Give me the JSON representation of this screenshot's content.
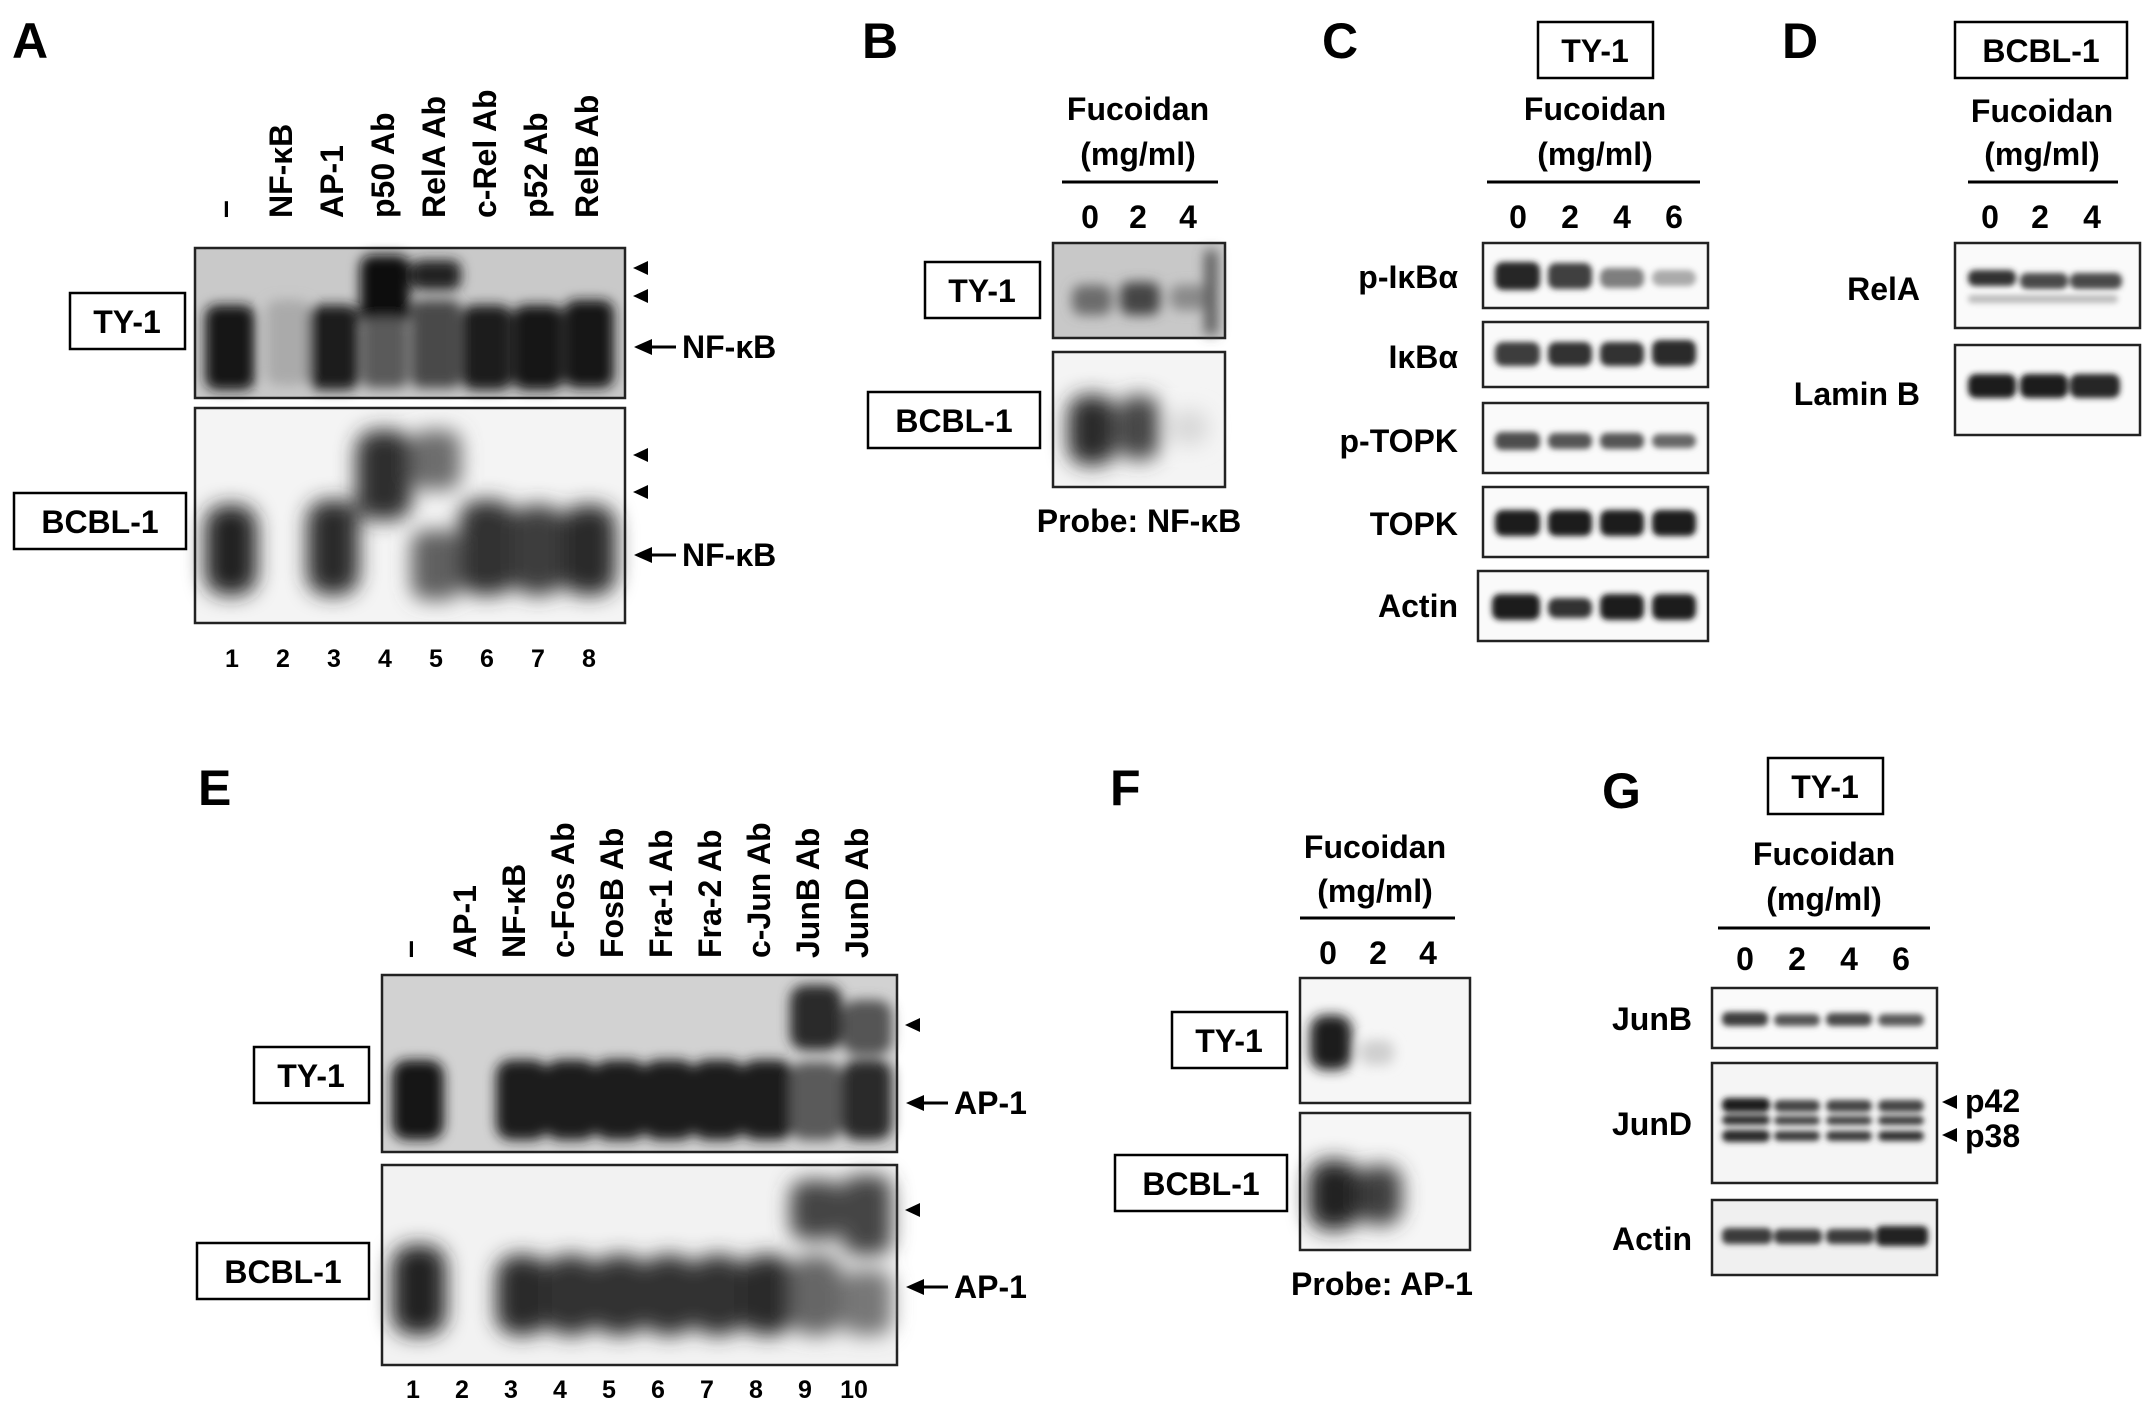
{
  "panels": {
    "A": {
      "label": "A",
      "columns": [
        "–",
        "NF-κB",
        "AP-1",
        "p50 Ab",
        "RelA Ab",
        "c-Rel Ab",
        "p52 Ab",
        "RelB Ab"
      ],
      "rows": [
        "TY-1",
        "BCBL-1"
      ],
      "marker": "NF-κB",
      "lanes": [
        "1",
        "2",
        "3",
        "4",
        "5",
        "6",
        "7",
        "8"
      ]
    },
    "B": {
      "label": "B",
      "treatment": "Fucoidan",
      "unit": "(mg/ml)",
      "doses": [
        "0",
        "2",
        "4"
      ],
      "rows": [
        "TY-1",
        "BCBL-1"
      ],
      "probe": "Probe: NF-κB"
    },
    "C": {
      "label": "C",
      "cell": "TY-1",
      "treatment": "Fucoidan",
      "unit": "(mg/ml)",
      "doses": [
        "0",
        "2",
        "4",
        "6"
      ],
      "rows": [
        "p-IκBα",
        "IκBα",
        "p-TOPK",
        "TOPK",
        "Actin"
      ]
    },
    "D": {
      "label": "D",
      "cell": "BCBL-1",
      "treatment": "Fucoidan",
      "unit": "(mg/ml)",
      "doses": [
        "0",
        "2",
        "4"
      ],
      "rows": [
        "RelA",
        "Lamin B"
      ]
    },
    "E": {
      "label": "E",
      "columns": [
        "–",
        "AP-1",
        "NF-κB",
        "c-Fos Ab",
        "FosB Ab",
        "Fra-1 Ab",
        "Fra-2 Ab",
        "c-Jun Ab",
        "JunB Ab",
        "JunD Ab"
      ],
      "rows": [
        "TY-1",
        "BCBL-1"
      ],
      "marker": "AP-1",
      "lanes": [
        "1",
        "2",
        "3",
        "4",
        "5",
        "6",
        "7",
        "8",
        "9",
        "10"
      ]
    },
    "F": {
      "label": "F",
      "treatment": "Fucoidan",
      "unit": "(mg/ml)",
      "doses": [
        "0",
        "2",
        "4"
      ],
      "rows": [
        "TY-1",
        "BCBL-1"
      ],
      "probe": "Probe: AP-1"
    },
    "G": {
      "label": "G",
      "cell": "TY-1",
      "treatment": "Fucoidan",
      "unit": "(mg/ml)",
      "doses": [
        "0",
        "2",
        "4",
        "6"
      ],
      "rows": [
        "JunB",
        "JunD",
        "Actin"
      ],
      "junD_bands": [
        "p42",
        "p38"
      ]
    }
  }
}
